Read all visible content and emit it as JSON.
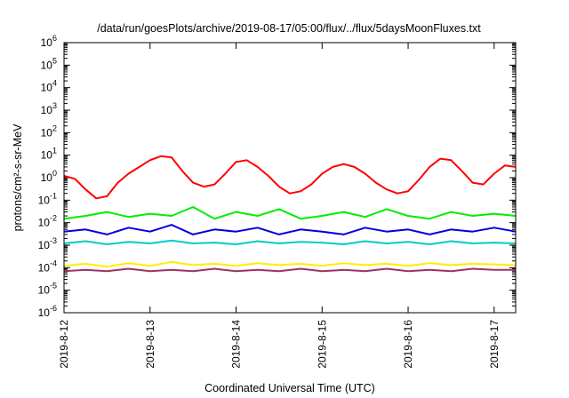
{
  "chart_data": {
    "type": "line",
    "title": "/data/run/goesPlots/archive/2019-08-17/05:00/flux/../flux/5daysMoonFluxes.txt",
    "xlabel": "Coordinated Universal Time (UTC)",
    "ylabel": "protons/cm²-s-sr-MeV",
    "y_scale": "log",
    "ylim": [
      1e-06,
      1000000.0
    ],
    "y_ticks": [
      {
        "base": "10",
        "exp": "-6"
      },
      {
        "base": "10",
        "exp": "-5"
      },
      {
        "base": "10",
        "exp": "-4"
      },
      {
        "base": "10",
        "exp": "-3"
      },
      {
        "base": "10",
        "exp": "-2"
      },
      {
        "base": "10",
        "exp": "-1"
      },
      {
        "base": "10",
        "exp": "0"
      },
      {
        "base": "10",
        "exp": "1"
      },
      {
        "base": "10",
        "exp": "2"
      },
      {
        "base": "10",
        "exp": "3"
      },
      {
        "base": "10",
        "exp": "4"
      },
      {
        "base": "10",
        "exp": "5"
      },
      {
        "base": "10",
        "exp": "6"
      }
    ],
    "xlim": [
      "2019-08-12 00:00",
      "2019-08-17 06:00"
    ],
    "x_ticks": [
      "2019-8-12",
      "2019-8-13",
      "2019-8-14",
      "2019-8-15",
      "2019-8-16",
      "2019-8-17"
    ],
    "grid": false,
    "legend": "none",
    "series": [
      {
        "color": "#ff0000",
        "x": [
          "2019-08-12 00:00",
          "2019-08-12 03:00",
          "2019-08-12 06:00",
          "2019-08-12 09:00",
          "2019-08-12 12:00",
          "2019-08-12 15:00",
          "2019-08-12 18:00",
          "2019-08-12 21:00",
          "2019-08-13 00:00",
          "2019-08-13 03:00",
          "2019-08-13 06:00",
          "2019-08-13 09:00",
          "2019-08-13 12:00",
          "2019-08-13 15:00",
          "2019-08-13 18:00",
          "2019-08-13 21:00",
          "2019-08-14 00:00",
          "2019-08-14 03:00",
          "2019-08-14 06:00",
          "2019-08-14 09:00",
          "2019-08-14 12:00",
          "2019-08-14 15:00",
          "2019-08-14 18:00",
          "2019-08-14 21:00",
          "2019-08-15 00:00",
          "2019-08-15 03:00",
          "2019-08-15 06:00",
          "2019-08-15 09:00",
          "2019-08-15 12:00",
          "2019-08-15 15:00",
          "2019-08-15 18:00",
          "2019-08-15 21:00",
          "2019-08-16 00:00",
          "2019-08-16 03:00",
          "2019-08-16 06:00",
          "2019-08-16 09:00",
          "2019-08-16 12:00",
          "2019-08-16 15:00",
          "2019-08-16 18:00",
          "2019-08-16 21:00",
          "2019-08-17 00:00",
          "2019-08-17 03:00",
          "2019-08-17 06:00"
        ],
        "values": [
          1.2,
          0.9,
          0.3,
          0.12,
          0.15,
          0.6,
          1.5,
          3,
          6,
          9,
          8,
          2,
          0.6,
          0.4,
          0.5,
          1.5,
          5,
          6,
          3,
          1.2,
          0.4,
          0.2,
          0.25,
          0.5,
          1.5,
          3,
          4,
          3,
          1.5,
          0.6,
          0.3,
          0.2,
          0.25,
          0.8,
          3,
          7,
          6,
          2,
          0.6,
          0.5,
          1.5,
          3.5,
          3.0
        ]
      },
      {
        "color": "#00ee00",
        "x": [
          "2019-08-12 00:00",
          "2019-08-12 06:00",
          "2019-08-12 12:00",
          "2019-08-12 18:00",
          "2019-08-13 00:00",
          "2019-08-13 06:00",
          "2019-08-13 12:00",
          "2019-08-13 18:00",
          "2019-08-14 00:00",
          "2019-08-14 06:00",
          "2019-08-14 12:00",
          "2019-08-14 18:00",
          "2019-08-15 00:00",
          "2019-08-15 06:00",
          "2019-08-15 12:00",
          "2019-08-15 18:00",
          "2019-08-16 00:00",
          "2019-08-16 06:00",
          "2019-08-16 12:00",
          "2019-08-16 18:00",
          "2019-08-17 00:00",
          "2019-08-17 06:00"
        ],
        "values": [
          0.015,
          0.02,
          0.03,
          0.018,
          0.025,
          0.02,
          0.05,
          0.015,
          0.03,
          0.02,
          0.04,
          0.015,
          0.02,
          0.03,
          0.018,
          0.04,
          0.02,
          0.015,
          0.03,
          0.02,
          0.025,
          0.02
        ]
      },
      {
        "color": "#0000dd",
        "x": [
          "2019-08-12 00:00",
          "2019-08-12 06:00",
          "2019-08-12 12:00",
          "2019-08-12 18:00",
          "2019-08-13 00:00",
          "2019-08-13 06:00",
          "2019-08-13 12:00",
          "2019-08-13 18:00",
          "2019-08-14 00:00",
          "2019-08-14 06:00",
          "2019-08-14 12:00",
          "2019-08-14 18:00",
          "2019-08-15 00:00",
          "2019-08-15 06:00",
          "2019-08-15 12:00",
          "2019-08-15 18:00",
          "2019-08-16 00:00",
          "2019-08-16 06:00",
          "2019-08-16 12:00",
          "2019-08-16 18:00",
          "2019-08-17 00:00",
          "2019-08-17 06:00"
        ],
        "values": [
          0.004,
          0.005,
          0.003,
          0.006,
          0.004,
          0.008,
          0.003,
          0.005,
          0.004,
          0.006,
          0.003,
          0.005,
          0.004,
          0.003,
          0.006,
          0.004,
          0.005,
          0.003,
          0.005,
          0.004,
          0.006,
          0.004
        ]
      },
      {
        "color": "#00cccc",
        "x": [
          "2019-08-12 00:00",
          "2019-08-12 06:00",
          "2019-08-12 12:00",
          "2019-08-12 18:00",
          "2019-08-13 00:00",
          "2019-08-13 06:00",
          "2019-08-13 12:00",
          "2019-08-13 18:00",
          "2019-08-14 00:00",
          "2019-08-14 06:00",
          "2019-08-14 12:00",
          "2019-08-14 18:00",
          "2019-08-15 00:00",
          "2019-08-15 06:00",
          "2019-08-15 12:00",
          "2019-08-15 18:00",
          "2019-08-16 00:00",
          "2019-08-16 06:00",
          "2019-08-16 12:00",
          "2019-08-16 18:00",
          "2019-08-17 00:00",
          "2019-08-17 06:00"
        ],
        "values": [
          0.0012,
          0.0015,
          0.0011,
          0.0014,
          0.0012,
          0.0016,
          0.0012,
          0.0013,
          0.0011,
          0.0015,
          0.0012,
          0.0014,
          0.0013,
          0.0011,
          0.0015,
          0.0012,
          0.0014,
          0.0011,
          0.0015,
          0.0012,
          0.0013,
          0.0012
        ]
      },
      {
        "color": "#ffee00",
        "x": [
          "2019-08-12 00:00",
          "2019-08-12 06:00",
          "2019-08-12 12:00",
          "2019-08-12 18:00",
          "2019-08-13 00:00",
          "2019-08-13 06:00",
          "2019-08-13 12:00",
          "2019-08-13 18:00",
          "2019-08-14 00:00",
          "2019-08-14 06:00",
          "2019-08-14 12:00",
          "2019-08-14 18:00",
          "2019-08-15 00:00",
          "2019-08-15 06:00",
          "2019-08-15 12:00",
          "2019-08-15 18:00",
          "2019-08-16 00:00",
          "2019-08-16 06:00",
          "2019-08-16 12:00",
          "2019-08-16 18:00",
          "2019-08-17 00:00",
          "2019-08-17 06:00"
        ],
        "values": [
          0.00012,
          0.00015,
          0.00011,
          0.00016,
          0.00012,
          0.00018,
          0.00013,
          0.00015,
          0.00012,
          0.00016,
          0.00013,
          0.00015,
          0.00012,
          0.00016,
          0.00013,
          0.00015,
          0.00012,
          0.00016,
          0.00013,
          0.00015,
          0.00014,
          0.00013
        ]
      },
      {
        "color": "#993366",
        "x": [
          "2019-08-12 00:00",
          "2019-08-12 06:00",
          "2019-08-12 12:00",
          "2019-08-12 18:00",
          "2019-08-13 00:00",
          "2019-08-13 06:00",
          "2019-08-13 12:00",
          "2019-08-13 18:00",
          "2019-08-14 00:00",
          "2019-08-14 06:00",
          "2019-08-14 12:00",
          "2019-08-14 18:00",
          "2019-08-15 00:00",
          "2019-08-15 06:00",
          "2019-08-15 12:00",
          "2019-08-15 18:00",
          "2019-08-16 00:00",
          "2019-08-16 06:00",
          "2019-08-16 12:00",
          "2019-08-16 18:00",
          "2019-08-17 00:00",
          "2019-08-17 06:00"
        ],
        "values": [
          7e-05,
          8e-05,
          7e-05,
          9e-05,
          7e-05,
          8e-05,
          7e-05,
          9e-05,
          7e-05,
          8e-05,
          7e-05,
          9e-05,
          7e-05,
          8e-05,
          7e-05,
          9e-05,
          7e-05,
          8e-05,
          7e-05,
          9e-05,
          8e-05,
          8e-05
        ]
      }
    ]
  }
}
